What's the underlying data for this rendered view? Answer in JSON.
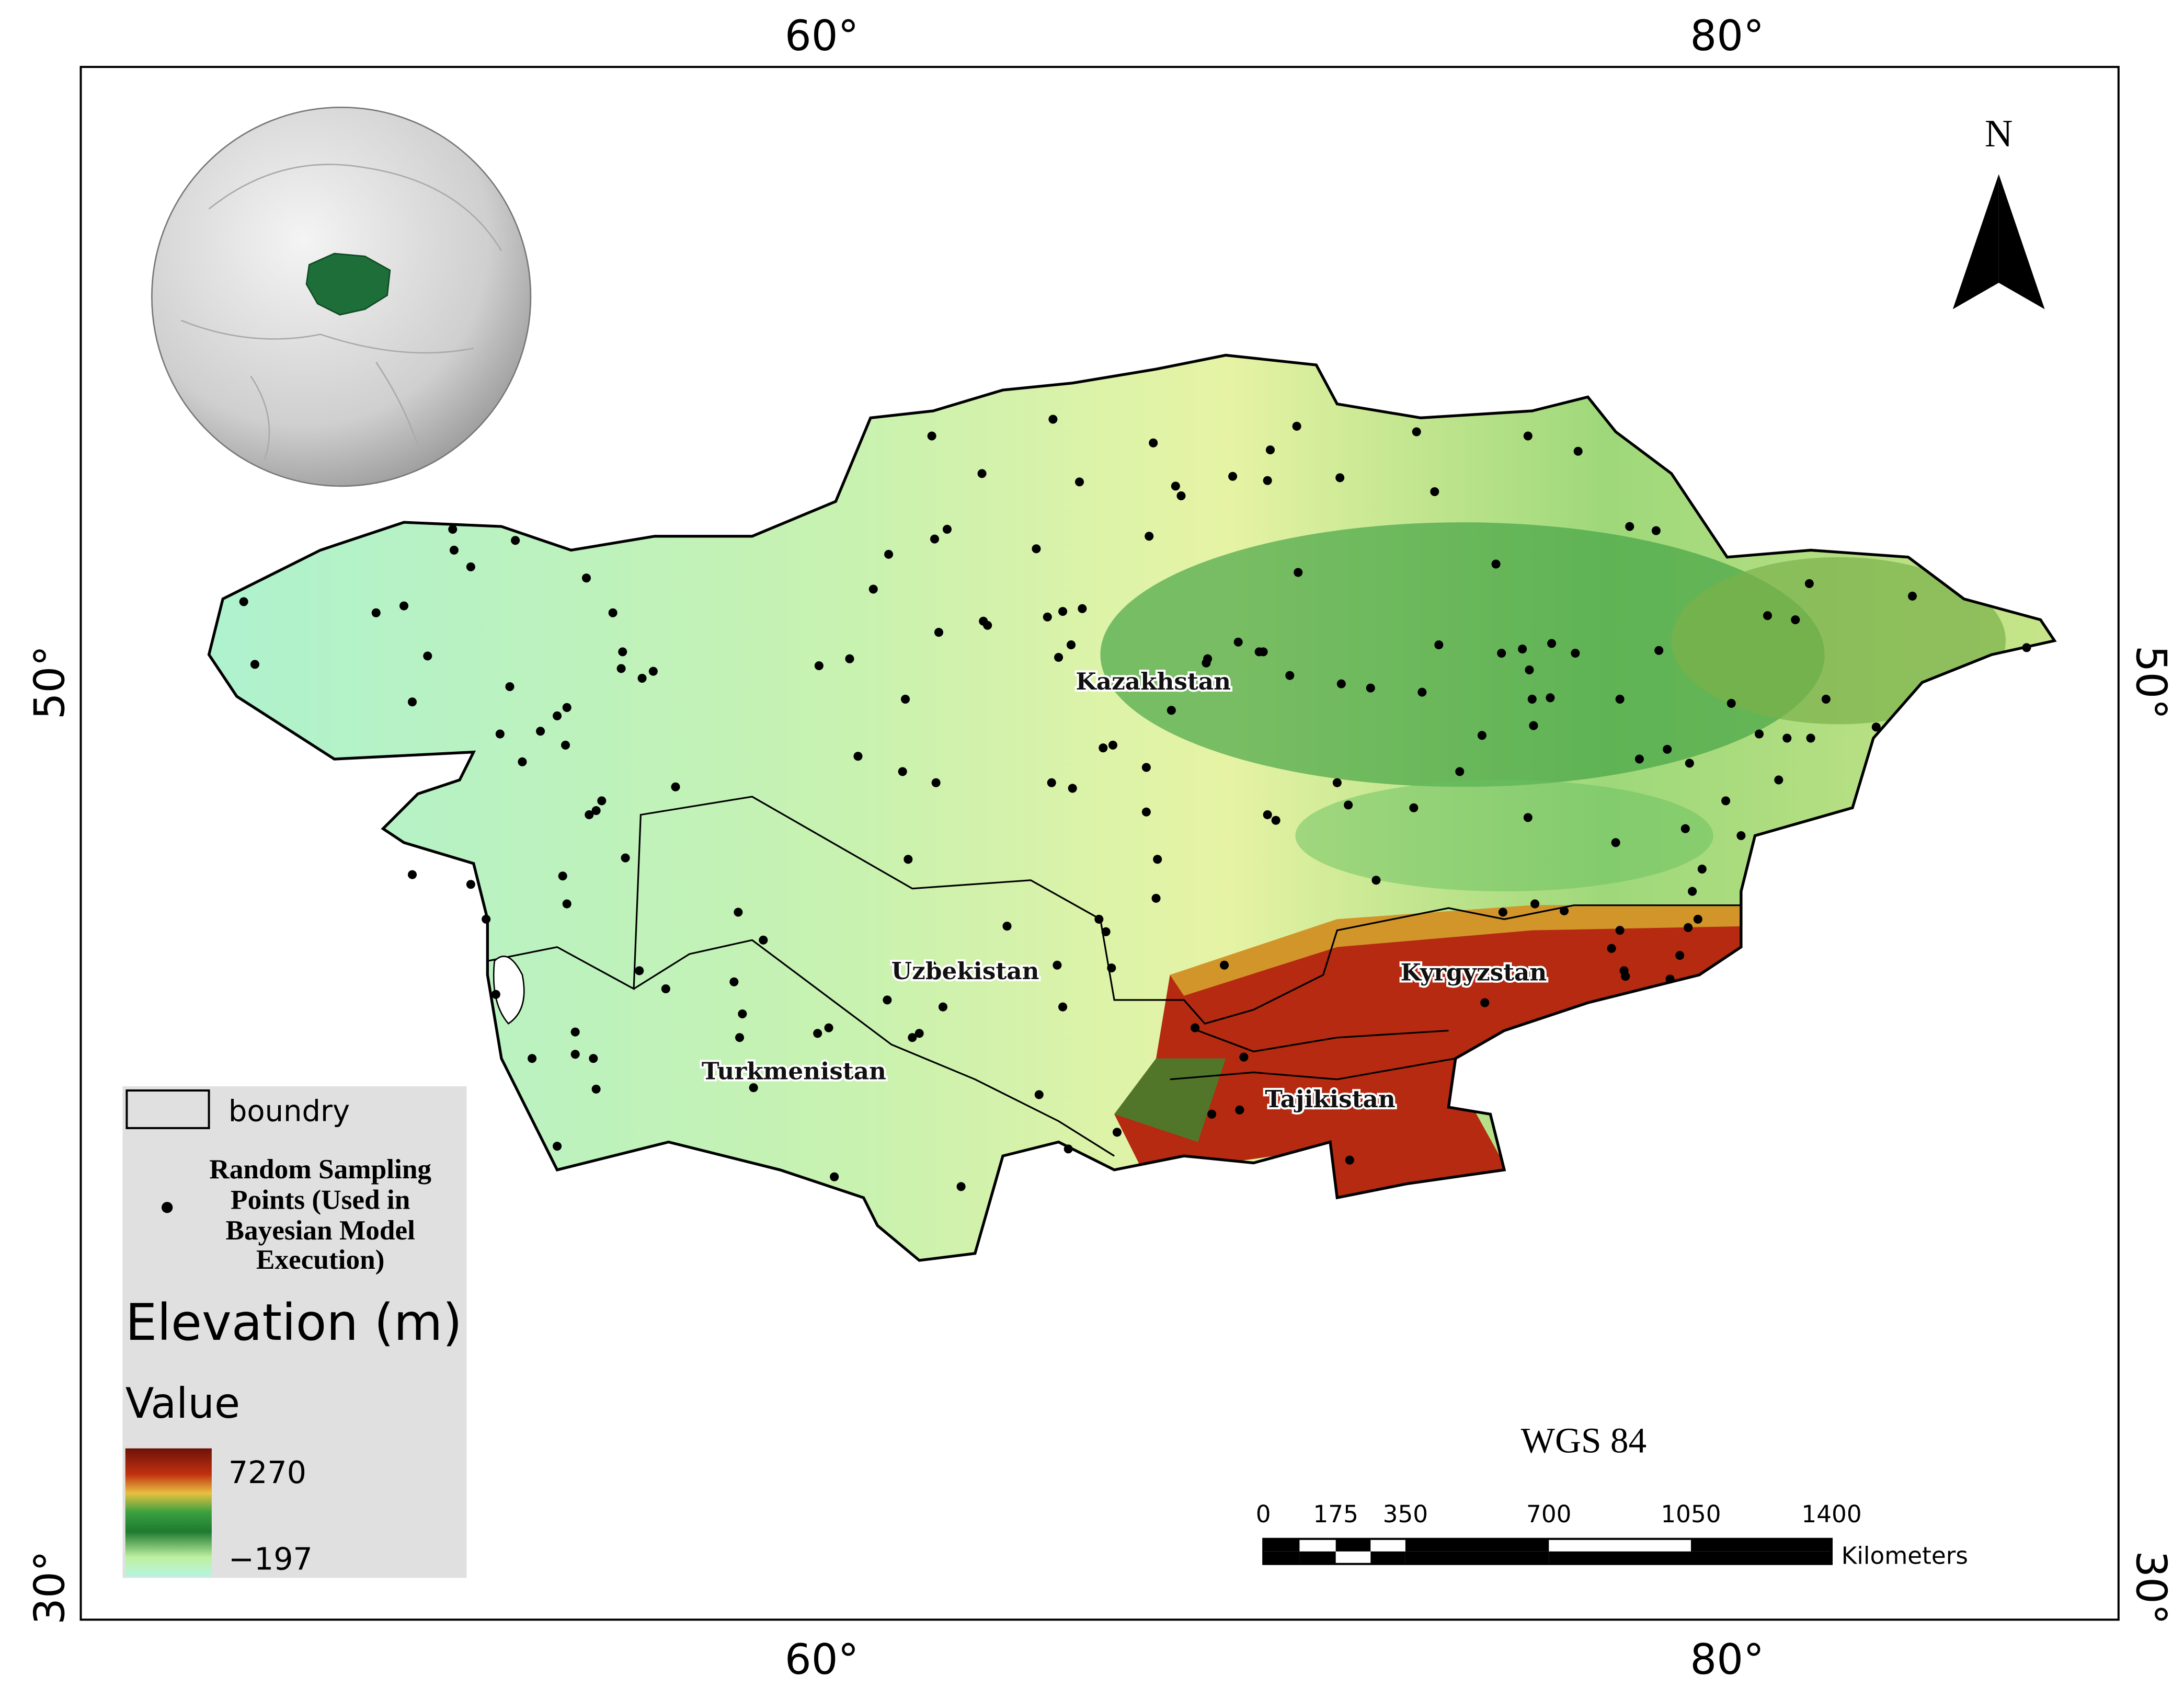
{
  "map": {
    "graticule": {
      "top": [
        "60°",
        "80°"
      ],
      "bottom": [
        "60°",
        "80°"
      ],
      "left": [
        "50°",
        "30°"
      ],
      "right": [
        "50°",
        "30°"
      ]
    },
    "north_arrow": "N",
    "countries": [
      "Kazakhstan",
      "Uzbekistan",
      "Kyrgyzstan",
      "Turkmenistan",
      "Tajikistan"
    ],
    "legend": {
      "boundary": "boundry",
      "points": [
        "Random Sampling",
        "Points (Used in",
        "Bayesian Model",
        "Execution)"
      ],
      "title": "Elevation (m)",
      "subtitle": "Value",
      "max": "7270",
      "min": "−197"
    },
    "crs": "WGS 84",
    "scale_bar": {
      "labels": [
        "0",
        "175",
        "350",
        "700",
        "1050",
        "1400"
      ],
      "unit": "Kilometers"
    }
  }
}
